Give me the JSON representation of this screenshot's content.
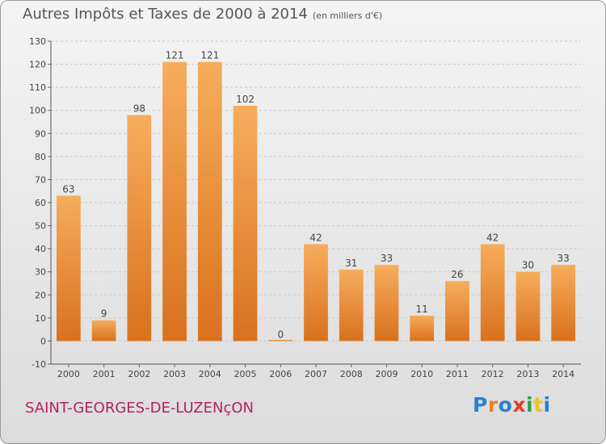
{
  "chart_data": {
    "type": "bar",
    "title": "Autres Impôts et Taxes de 2000 à 2014",
    "subtitle": "(en milliers d'€)",
    "categories": [
      "2000",
      "2001",
      "2002",
      "2003",
      "2004",
      "2005",
      "2006",
      "2007",
      "2008",
      "2009",
      "2010",
      "2011",
      "2012",
      "2013",
      "2014"
    ],
    "values": [
      63,
      9,
      98,
      121,
      121,
      102,
      0,
      42,
      31,
      33,
      11,
      26,
      42,
      30,
      33
    ],
    "ylim": [
      -10,
      130
    ],
    "yticks": [
      -10,
      0,
      10,
      20,
      30,
      40,
      50,
      60,
      70,
      80,
      90,
      100,
      110,
      120,
      130
    ],
    "grid": true,
    "bar_color": "#e8822a"
  },
  "footer": {
    "place_name": "SAINT-GEORGES-DE-LUZENçON",
    "place_color": "#b0245f",
    "logo_text": "Proxiti",
    "logo_colors": [
      "#2a7fd0",
      "#e8822a",
      "#2a7fd0",
      "#e83a2a",
      "#2aa34a",
      "#e8c32a",
      "#2a7fd0"
    ]
  }
}
